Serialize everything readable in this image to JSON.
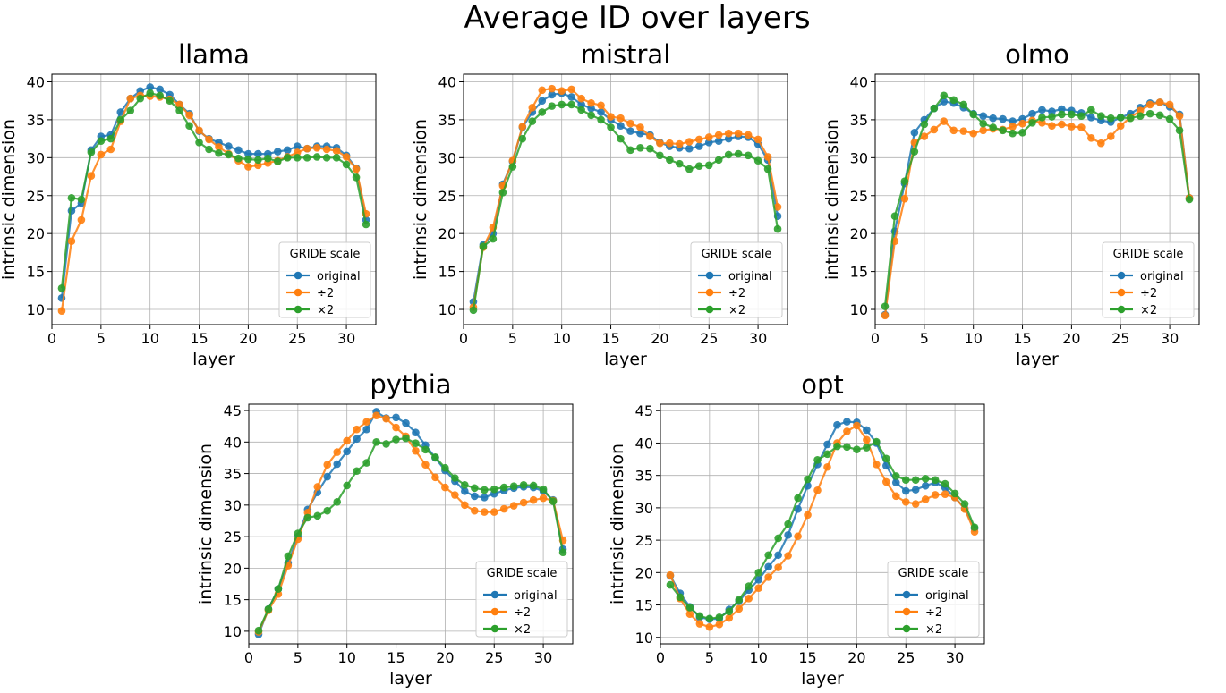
{
  "figure": {
    "title": "Average ID over layers"
  },
  "colors": {
    "original": "#1f77b4",
    "half": "#ff7f0e",
    "double": "#2ca02c"
  },
  "chart_data": [
    {
      "type": "line",
      "title": "llama",
      "xlabel": "layer",
      "ylabel": "intrinsic dimension",
      "xlim": [
        0,
        33
      ],
      "ylim": [
        8,
        41
      ],
      "xticks": [
        0,
        5,
        10,
        15,
        20,
        25,
        30
      ],
      "yticks": [
        10,
        15,
        20,
        25,
        30,
        35,
        40
      ],
      "grid": true,
      "legend": {
        "title": "GRIDE scale",
        "position": "lower-right"
      },
      "x": [
        1,
        2,
        3,
        4,
        5,
        6,
        7,
        8,
        9,
        10,
        11,
        12,
        13,
        14,
        15,
        16,
        17,
        18,
        19,
        20,
        21,
        22,
        23,
        24,
        25,
        26,
        27,
        28,
        29,
        30,
        31,
        32
      ],
      "series": [
        {
          "name": "original",
          "values": [
            11.5,
            23.0,
            24.0,
            31.0,
            32.8,
            33.0,
            36.0,
            37.8,
            38.8,
            39.3,
            39.0,
            38.3,
            37.0,
            35.8,
            33.5,
            32.5,
            32.0,
            31.5,
            31.0,
            30.5,
            30.5,
            30.5,
            30.8,
            31.0,
            31.5,
            31.2,
            31.5,
            31.5,
            31.3,
            30.3,
            28.6,
            21.8
          ]
        },
        {
          "name": "÷2",
          "values": [
            9.8,
            19.0,
            21.8,
            27.6,
            30.4,
            31.1,
            34.8,
            37.8,
            38.2,
            38.1,
            38.0,
            37.7,
            37.0,
            35.6,
            33.6,
            32.4,
            31.4,
            30.5,
            29.6,
            28.8,
            29.0,
            29.3,
            29.6,
            30.1,
            30.7,
            31.2,
            31.3,
            31.1,
            30.9,
            30.1,
            28.5,
            22.6
          ]
        },
        {
          "name": "×2",
          "values": [
            12.8,
            24.7,
            24.5,
            30.7,
            32.2,
            32.5,
            35.0,
            36.2,
            37.8,
            38.5,
            38.2,
            37.5,
            36.2,
            34.2,
            32.0,
            31.1,
            30.6,
            30.4,
            29.9,
            29.8,
            29.7,
            29.9,
            29.5,
            30.0,
            30.0,
            30.0,
            30.1,
            30.0,
            30.0,
            29.1,
            27.4,
            21.2
          ]
        }
      ]
    },
    {
      "type": "line",
      "title": "mistral",
      "xlabel": "layer",
      "ylabel": "intrinsic dimension",
      "xlim": [
        0,
        33
      ],
      "ylim": [
        8,
        41
      ],
      "xticks": [
        0,
        5,
        10,
        15,
        20,
        25,
        30
      ],
      "yticks": [
        10,
        15,
        20,
        25,
        30,
        35,
        40
      ],
      "grid": true,
      "legend": {
        "title": "GRIDE scale",
        "position": "lower-right"
      },
      "x": [
        1,
        2,
        3,
        4,
        5,
        6,
        7,
        8,
        9,
        10,
        11,
        12,
        13,
        14,
        15,
        16,
        17,
        18,
        19,
        20,
        21,
        22,
        23,
        24,
        25,
        26,
        27,
        28,
        29,
        30,
        31,
        32
      ],
      "series": [
        {
          "name": "original",
          "values": [
            11.0,
            18.5,
            20.0,
            26.5,
            29.5,
            34.0,
            36.0,
            37.5,
            38.3,
            38.5,
            38.0,
            37.0,
            36.5,
            36.0,
            35.0,
            34.2,
            33.5,
            33.2,
            33.0,
            32.0,
            31.5,
            31.3,
            31.2,
            31.5,
            32.0,
            32.2,
            32.5,
            32.8,
            32.7,
            31.8,
            29.7,
            22.3
          ]
        },
        {
          "name": "÷2",
          "values": [
            10.3,
            18.2,
            20.8,
            26.3,
            29.6,
            34.1,
            36.6,
            38.9,
            39.1,
            38.8,
            39.0,
            37.8,
            37.2,
            36.9,
            35.4,
            35.2,
            34.5,
            34.0,
            32.8,
            31.9,
            31.9,
            31.8,
            32.1,
            32.4,
            32.7,
            33.0,
            33.2,
            33.2,
            33.0,
            32.4,
            30.1,
            23.5
          ]
        },
        {
          "name": "×2",
          "values": [
            9.9,
            18.3,
            19.3,
            25.4,
            28.8,
            32.5,
            34.8,
            36.0,
            36.8,
            37.0,
            37.0,
            36.3,
            35.6,
            35.0,
            34.0,
            32.5,
            31.0,
            31.3,
            31.2,
            30.3,
            29.7,
            29.2,
            28.5,
            28.9,
            29.0,
            29.7,
            30.4,
            30.5,
            30.3,
            29.6,
            28.5,
            20.6
          ]
        }
      ]
    },
    {
      "type": "line",
      "title": "olmo",
      "xlabel": "layer",
      "ylabel": "intrinsic dimension",
      "xlim": [
        0,
        33
      ],
      "ylim": [
        8,
        41
      ],
      "xticks": [
        0,
        5,
        10,
        15,
        20,
        25,
        30
      ],
      "yticks": [
        10,
        15,
        20,
        25,
        30,
        35,
        40
      ],
      "grid": true,
      "legend": {
        "title": "GRIDE scale",
        "position": "lower-right"
      },
      "x": [
        1,
        2,
        3,
        4,
        5,
        6,
        7,
        8,
        9,
        10,
        11,
        12,
        13,
        14,
        15,
        16,
        17,
        18,
        19,
        20,
        21,
        22,
        23,
        24,
        25,
        26,
        27,
        28,
        29,
        30,
        31,
        32
      ],
      "series": [
        {
          "name": "original",
          "values": [
            9.3,
            20.3,
            26.6,
            33.3,
            35.0,
            36.5,
            37.4,
            37.2,
            36.6,
            35.8,
            35.5,
            35.2,
            35.1,
            34.8,
            35.1,
            35.8,
            36.3,
            36.1,
            36.4,
            36.2,
            35.9,
            35.3,
            34.9,
            34.7,
            35.3,
            35.8,
            36.6,
            37.2,
            37.3,
            36.7,
            35.7,
            24.7
          ]
        },
        {
          "name": "÷2",
          "values": [
            9.2,
            19.0,
            24.6,
            32.0,
            32.8,
            33.7,
            34.8,
            33.6,
            33.5,
            33.2,
            33.6,
            33.8,
            33.7,
            34.1,
            34.5,
            34.9,
            34.6,
            34.2,
            34.4,
            34.1,
            34.0,
            32.6,
            31.9,
            32.8,
            34.2,
            35.3,
            36.2,
            37.0,
            37.3,
            37.0,
            35.5,
            24.7
          ]
        },
        {
          "name": "×2",
          "values": [
            10.4,
            22.3,
            26.9,
            30.8,
            34.4,
            36.5,
            38.2,
            37.6,
            37.0,
            35.7,
            34.5,
            34.0,
            33.6,
            33.2,
            33.3,
            34.6,
            35.3,
            35.4,
            35.7,
            35.7,
            35.5,
            36.3,
            35.5,
            35.2,
            35.3,
            35.2,
            35.5,
            35.8,
            35.6,
            35.1,
            33.6,
            24.5
          ]
        }
      ]
    },
    {
      "type": "line",
      "title": "pythia",
      "xlabel": "layer",
      "ylabel": "intrinsic dimension",
      "xlim": [
        0,
        33
      ],
      "ylim": [
        8,
        46
      ],
      "xticks": [
        0,
        5,
        10,
        15,
        20,
        25,
        30
      ],
      "yticks": [
        10,
        15,
        20,
        25,
        30,
        35,
        40,
        45
      ],
      "grid": true,
      "legend": {
        "title": "GRIDE scale",
        "position": "lower-right"
      },
      "x": [
        1,
        2,
        3,
        4,
        5,
        6,
        7,
        8,
        9,
        10,
        11,
        12,
        13,
        14,
        15,
        16,
        17,
        18,
        19,
        20,
        21,
        22,
        23,
        24,
        25,
        26,
        27,
        28,
        29,
        30,
        31,
        32
      ],
      "series": [
        {
          "name": "original",
          "values": [
            9.5,
            13.5,
            16.7,
            20.8,
            25.0,
            29.3,
            32.0,
            34.5,
            36.5,
            38.5,
            40.5,
            42.0,
            44.8,
            43.8,
            43.9,
            43.0,
            41.5,
            39.5,
            37.5,
            35.5,
            33.8,
            32.2,
            31.4,
            31.2,
            31.8,
            32.3,
            32.7,
            32.9,
            32.8,
            32.2,
            30.8,
            23.0
          ]
        },
        {
          "name": "÷2",
          "values": [
            9.9,
            13.3,
            15.9,
            20.4,
            24.6,
            28.8,
            32.9,
            36.4,
            38.4,
            40.2,
            42.0,
            43.2,
            44.2,
            43.7,
            42.3,
            40.9,
            38.6,
            36.4,
            34.4,
            32.8,
            31.6,
            30.0,
            29.1,
            28.9,
            28.9,
            29.4,
            29.9,
            30.4,
            30.8,
            31.1,
            30.7,
            24.4
          ]
        },
        {
          "name": "×2",
          "values": [
            10.1,
            13.5,
            16.7,
            21.9,
            25.5,
            28.0,
            28.3,
            29.1,
            30.5,
            33.1,
            35.4,
            36.7,
            40.0,
            39.7,
            40.4,
            40.6,
            39.8,
            38.8,
            37.6,
            35.9,
            34.3,
            33.2,
            32.7,
            32.4,
            32.5,
            32.8,
            33.0,
            33.2,
            33.1,
            32.5,
            30.6,
            22.5
          ]
        }
      ]
    },
    {
      "type": "line",
      "title": "opt",
      "xlabel": "layer",
      "ylabel": "intrinsic dimension",
      "xlim": [
        0,
        33
      ],
      "ylim": [
        9,
        46
      ],
      "xticks": [
        0,
        5,
        10,
        15,
        20,
        25,
        30
      ],
      "yticks": [
        10,
        15,
        20,
        25,
        30,
        35,
        40,
        45
      ],
      "grid": true,
      "legend": {
        "title": "GRIDE scale",
        "position": "lower-right"
      },
      "x": [
        1,
        2,
        3,
        4,
        5,
        6,
        7,
        8,
        9,
        10,
        11,
        12,
        13,
        14,
        15,
        16,
        17,
        18,
        19,
        20,
        21,
        22,
        23,
        24,
        25,
        26,
        27,
        28,
        29,
        30,
        31,
        32
      ],
      "series": [
        {
          "name": "original",
          "values": [
            19.5,
            16.8,
            14.7,
            13.1,
            12.8,
            12.9,
            14.3,
            15.6,
            17.3,
            18.9,
            20.9,
            22.7,
            25.8,
            29.8,
            33.4,
            36.7,
            39.8,
            42.8,
            43.3,
            43.2,
            42.0,
            40.0,
            36.5,
            33.9,
            32.6,
            32.8,
            33.4,
            33.9,
            33.1,
            31.6,
            29.9,
            26.8
          ]
        },
        {
          "name": "÷2",
          "values": [
            19.6,
            16.0,
            13.6,
            12.1,
            11.6,
            12.0,
            13.0,
            14.4,
            16.0,
            17.6,
            19.3,
            20.8,
            22.6,
            25.6,
            28.9,
            32.7,
            36.3,
            40.0,
            41.8,
            42.7,
            40.5,
            36.7,
            34.0,
            31.8,
            30.9,
            30.6,
            31.3,
            32.0,
            32.1,
            31.6,
            29.8,
            26.3
          ]
        },
        {
          "name": "×2",
          "values": [
            18.1,
            16.2,
            14.6,
            13.3,
            12.9,
            13.1,
            14.0,
            15.8,
            17.9,
            20.0,
            22.7,
            25.3,
            27.5,
            31.5,
            34.4,
            37.4,
            38.3,
            39.5,
            39.4,
            39.0,
            39.3,
            40.2,
            37.6,
            34.9,
            34.3,
            34.3,
            34.5,
            34.3,
            33.7,
            32.2,
            30.6,
            27.0
          ]
        }
      ]
    }
  ]
}
